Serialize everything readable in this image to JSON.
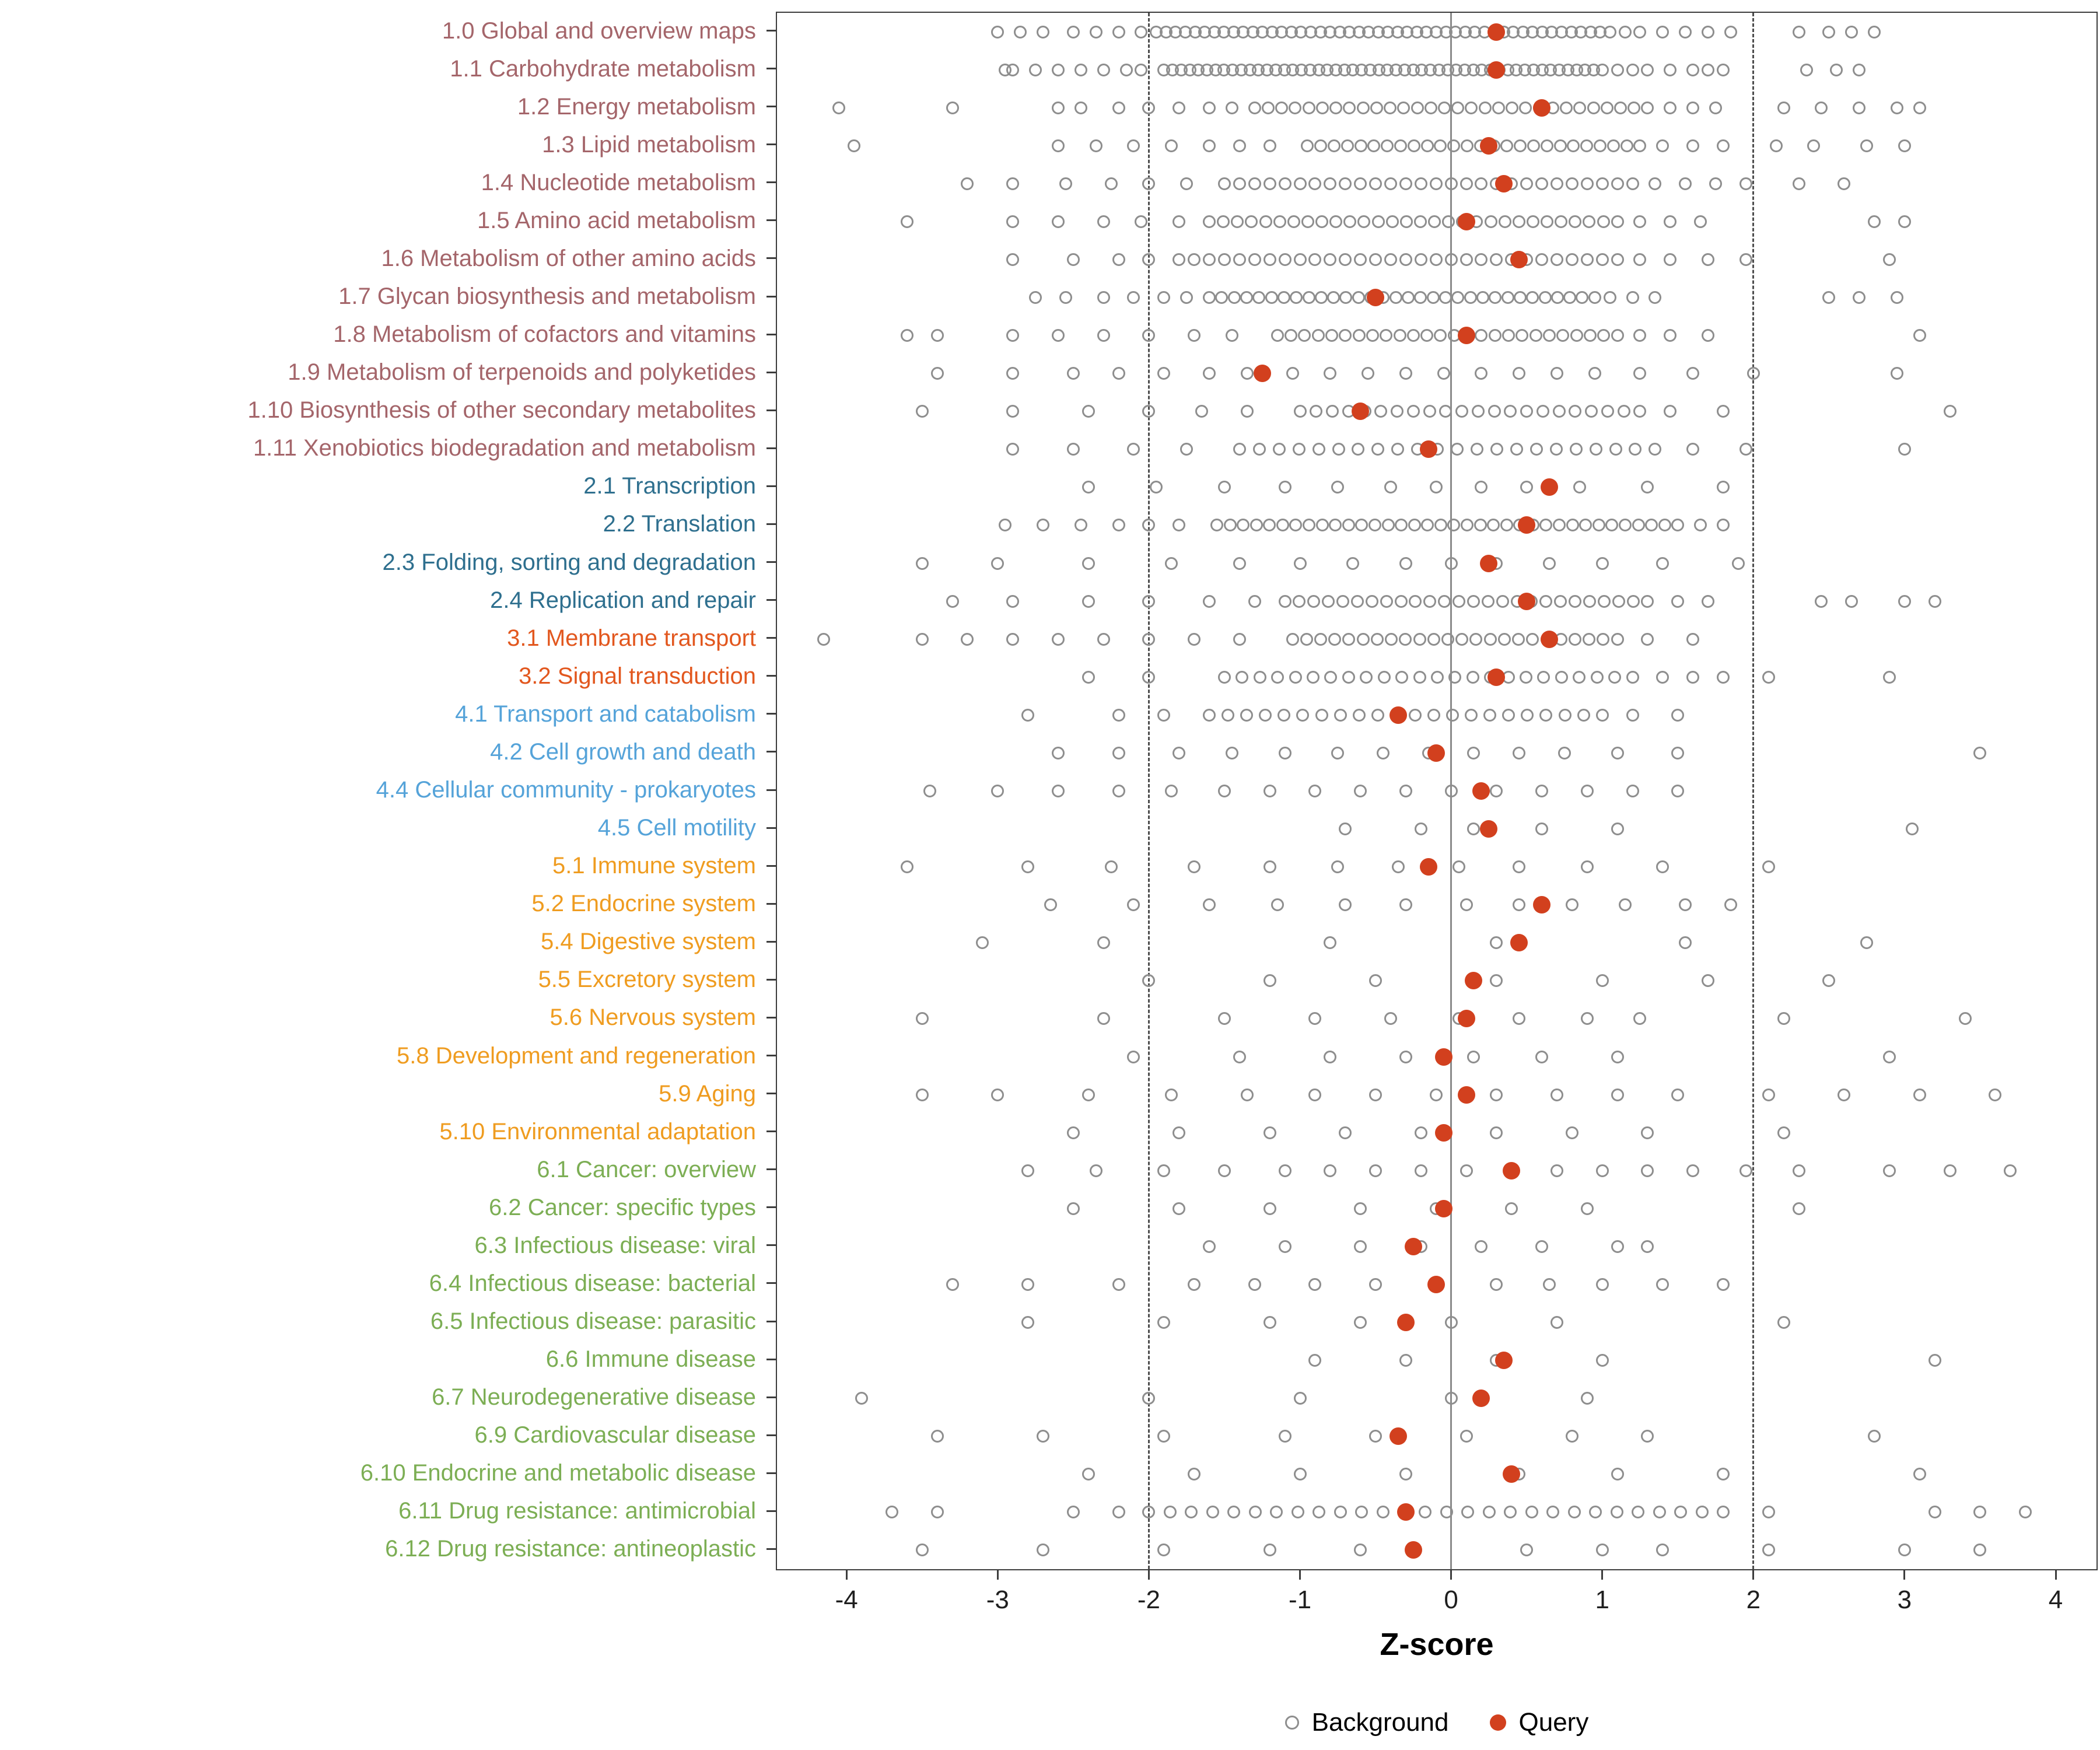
{
  "chart_data": {
    "type": "scatter",
    "title": "",
    "xlabel": "Z-score",
    "xticks": [
      -4,
      -3,
      -2,
      -1,
      0,
      1,
      2,
      3,
      4
    ],
    "xlim": [
      -4.46,
      4.27
    ],
    "grid": "off",
    "legend_position": "bottom",
    "reference_lines": {
      "solid": [
        0
      ],
      "dashed": [
        -2,
        2
      ]
    },
    "group_colors": {
      "metabolism": "#A4656A",
      "genetic": "#2E6F8E",
      "environmental": "#E2571E",
      "cellular": "#55A3D9",
      "organismal": "#EF9C20",
      "disease": "#7CAE54"
    },
    "rows": [
      {
        "label": "1.0 Global and overview maps",
        "group": "metabolism",
        "query": 0.3,
        "bg_segments": [
          [
            -1.95,
            1.05,
            48
          ]
        ],
        "bg_points": [
          -3.0,
          -2.85,
          -2.7,
          -2.5,
          -2.35,
          -2.2,
          -2.05,
          1.15,
          1.25,
          1.4,
          1.55,
          1.7,
          1.85,
          2.3,
          2.5,
          2.65,
          2.8
        ]
      },
      {
        "label": "1.1 Carbohydrate metabolism",
        "group": "metabolism",
        "query": 0.3,
        "bg_segments": [
          [
            -1.9,
            1.0,
            52
          ]
        ],
        "bg_points": [
          -2.95,
          -2.9,
          -2.75,
          -2.6,
          -2.45,
          -2.3,
          -2.15,
          -2.05,
          1.1,
          1.2,
          1.3,
          1.45,
          1.6,
          1.7,
          1.8,
          2.35,
          2.55,
          2.7
        ]
      },
      {
        "label": "1.2 Energy metabolism",
        "group": "metabolism",
        "query": 0.6,
        "bg_segments": [
          [
            -1.3,
            1.3,
            30
          ]
        ],
        "bg_points": [
          -4.05,
          -3.3,
          -2.6,
          -2.45,
          -2.2,
          -2.0,
          -1.8,
          -1.6,
          -1.45,
          1.45,
          1.6,
          1.75,
          2.2,
          2.45,
          2.7,
          2.95,
          3.1
        ]
      },
      {
        "label": "1.3 Lipid metabolism",
        "group": "metabolism",
        "query": 0.25,
        "bg_segments": [
          [
            -0.95,
            1.25,
            26
          ]
        ],
        "bg_points": [
          -3.95,
          -2.6,
          -2.35,
          -2.1,
          -1.85,
          -1.6,
          -1.4,
          -1.2,
          1.4,
          1.6,
          1.8,
          2.15,
          2.4,
          2.75,
          3.0
        ]
      },
      {
        "label": "1.4 Nucleotide metabolism",
        "group": "metabolism",
        "query": 0.35,
        "bg_segments": [
          [
            -1.5,
            1.2,
            28
          ]
        ],
        "bg_points": [
          -3.2,
          -2.9,
          -2.55,
          -2.25,
          -2.0,
          -1.75,
          1.35,
          1.55,
          1.75,
          1.95,
          2.3,
          2.6
        ]
      },
      {
        "label": "1.5 Amino acid metabolism",
        "group": "metabolism",
        "query": 0.1,
        "bg_segments": [
          [
            -1.6,
            1.1,
            30
          ]
        ],
        "bg_points": [
          -3.6,
          -2.9,
          -2.6,
          -2.3,
          -2.05,
          -1.8,
          1.25,
          1.45,
          1.65,
          2.8,
          3.0
        ]
      },
      {
        "label": "1.6 Metabolism of other amino acids",
        "group": "metabolism",
        "query": 0.45,
        "bg_segments": [
          [
            -1.8,
            1.1,
            30
          ]
        ],
        "bg_points": [
          -2.9,
          -2.5,
          -2.2,
          -2.0,
          1.25,
          1.45,
          1.7,
          1.95,
          2.9
        ]
      },
      {
        "label": "1.7 Glycan biosynthesis and metabolism",
        "group": "metabolism",
        "query": -0.5,
        "bg_segments": [
          [
            -1.6,
            0.95,
            32
          ]
        ],
        "bg_points": [
          -2.75,
          -2.55,
          -2.3,
          -2.1,
          -1.9,
          -1.75,
          1.05,
          1.2,
          1.35,
          2.5,
          2.7,
          2.95
        ]
      },
      {
        "label": "1.8 Metabolism of cofactors and vitamins",
        "group": "metabolism",
        "query": 0.1,
        "bg_segments": [
          [
            -1.15,
            1.1,
            26
          ]
        ],
        "bg_points": [
          -3.6,
          -3.4,
          -2.9,
          -2.6,
          -2.3,
          -2.0,
          -1.7,
          -1.45,
          1.25,
          1.45,
          1.7,
          3.1
        ]
      },
      {
        "label": "1.9 Metabolism of terpenoids and polyketides",
        "group": "metabolism",
        "query": -1.25,
        "bg_points": [
          -3.4,
          -2.9,
          -2.5,
          -2.2,
          -1.9,
          -1.6,
          -1.35,
          -1.05,
          -0.8,
          -0.55,
          -0.3,
          -0.05,
          0.2,
          0.45,
          0.7,
          0.95,
          1.25,
          1.6,
          2.0,
          2.95
        ]
      },
      {
        "label": "1.10 Biosynthesis of other secondary metabolites",
        "group": "metabolism",
        "query": -0.6,
        "bg_segments": [
          [
            -1.0,
            1.25,
            22
          ]
        ],
        "bg_points": [
          -3.5,
          -2.9,
          -2.4,
          -2.0,
          -1.65,
          -1.35,
          1.45,
          1.8,
          3.3
        ]
      },
      {
        "label": "1.11 Xenobiotics biodegradation and metabolism",
        "group": "metabolism",
        "query": -0.15,
        "bg_segments": [
          [
            -1.4,
            1.35,
            22
          ]
        ],
        "bg_points": [
          -2.9,
          -2.5,
          -2.1,
          -1.75,
          1.6,
          1.95,
          3.0
        ]
      },
      {
        "label": "2.1 Transcription",
        "group": "genetic",
        "query": 0.65,
        "bg_points": [
          -2.4,
          -1.95,
          -1.5,
          -1.1,
          -0.75,
          -0.4,
          -0.1,
          0.2,
          0.5,
          0.85,
          1.3,
          1.8
        ]
      },
      {
        "label": "2.2 Translation",
        "group": "genetic",
        "query": 0.5,
        "bg_segments": [
          [
            -1.55,
            1.5,
            36
          ]
        ],
        "bg_points": [
          -2.95,
          -2.7,
          -2.45,
          -2.2,
          -2.0,
          -1.8,
          1.65,
          1.8
        ]
      },
      {
        "label": "2.3 Folding, sorting and degradation",
        "group": "genetic",
        "query": 0.25,
        "bg_points": [
          -3.5,
          -3.0,
          -2.4,
          -1.85,
          -1.4,
          -1.0,
          -0.65,
          -0.3,
          0.0,
          0.3,
          0.65,
          1.0,
          1.4,
          1.9
        ]
      },
      {
        "label": "2.4 Replication and repair",
        "group": "genetic",
        "query": 0.5,
        "bg_segments": [
          [
            -1.1,
            1.3,
            26
          ]
        ],
        "bg_points": [
          -3.3,
          -2.9,
          -2.4,
          -2.0,
          -1.6,
          -1.3,
          1.5,
          1.7,
          2.45,
          2.65,
          3.0,
          3.2
        ]
      },
      {
        "label": "3.1 Membrane transport",
        "group": "environmental",
        "query": 0.65,
        "bg_segments": [
          [
            -1.05,
            1.1,
            24
          ]
        ],
        "bg_points": [
          -4.15,
          -3.5,
          -3.2,
          -2.9,
          -2.6,
          -2.3,
          -2.0,
          -1.7,
          -1.4,
          1.3,
          1.6
        ]
      },
      {
        "label": "3.2 Signal transduction",
        "group": "environmental",
        "query": 0.3,
        "bg_segments": [
          [
            -1.5,
            1.2,
            24
          ]
        ],
        "bg_points": [
          -2.4,
          -2.0,
          1.4,
          1.6,
          1.8,
          2.1,
          2.9
        ]
      },
      {
        "label": "4.1 Transport and catabolism",
        "group": "cellular",
        "query": -0.35,
        "bg_segments": [
          [
            -1.6,
            1.0,
            22
          ]
        ],
        "bg_points": [
          -2.8,
          -2.2,
          -1.9,
          1.2,
          1.5
        ]
      },
      {
        "label": "4.2 Cell growth and death",
        "group": "cellular",
        "query": -0.1,
        "bg_points": [
          -2.6,
          -2.2,
          -1.8,
          -1.45,
          -1.1,
          -0.75,
          -0.45,
          -0.15,
          0.15,
          0.45,
          0.75,
          1.1,
          1.5,
          3.5
        ]
      },
      {
        "label": "4.4 Cellular community - prokaryotes",
        "group": "cellular",
        "query": 0.2,
        "bg_points": [
          -3.45,
          -3.0,
          -2.6,
          -2.2,
          -1.85,
          -1.5,
          -1.2,
          -0.9,
          -0.6,
          -0.3,
          0.0,
          0.3,
          0.6,
          0.9,
          1.2,
          1.5
        ]
      },
      {
        "label": "4.5 Cell motility",
        "group": "cellular",
        "query": 0.25,
        "bg_points": [
          -0.7,
          -0.2,
          0.15,
          0.6,
          1.1,
          3.05
        ]
      },
      {
        "label": "5.1 Immune system",
        "group": "organismal",
        "query": -0.15,
        "bg_points": [
          -3.6,
          -2.8,
          -2.25,
          -1.7,
          -1.2,
          -0.75,
          -0.35,
          0.05,
          0.45,
          0.9,
          1.4,
          2.1
        ]
      },
      {
        "label": "5.2 Endocrine system",
        "group": "organismal",
        "query": 0.6,
        "bg_points": [
          -2.65,
          -2.1,
          -1.6,
          -1.15,
          -0.7,
          -0.3,
          0.1,
          0.45,
          0.8,
          1.15,
          1.55,
          1.85
        ]
      },
      {
        "label": "5.4 Digestive system",
        "group": "organismal",
        "query": 0.45,
        "bg_points": [
          -3.1,
          -2.3,
          -0.8,
          0.3,
          1.55,
          2.75
        ]
      },
      {
        "label": "5.5 Excretory system",
        "group": "organismal",
        "query": 0.15,
        "bg_points": [
          -2.0,
          -1.2,
          -0.5,
          0.3,
          1.0,
          1.7,
          2.5
        ]
      },
      {
        "label": "5.6 Nervous system",
        "group": "organismal",
        "query": 0.1,
        "bg_points": [
          -3.5,
          -2.3,
          -1.5,
          -0.9,
          -0.4,
          0.05,
          0.45,
          0.9,
          1.25,
          2.2,
          3.4
        ]
      },
      {
        "label": "5.8 Development and regeneration",
        "group": "organismal",
        "query": -0.05,
        "bg_points": [
          -2.1,
          -1.4,
          -0.8,
          -0.3,
          0.15,
          0.6,
          1.1,
          2.9
        ]
      },
      {
        "label": "5.9 Aging",
        "group": "organismal",
        "query": 0.1,
        "bg_points": [
          -3.5,
          -3.0,
          -2.4,
          -1.85,
          -1.35,
          -0.9,
          -0.5,
          -0.1,
          0.3,
          0.7,
          1.1,
          1.5,
          2.1,
          2.6,
          3.1,
          3.6
        ]
      },
      {
        "label": "5.10 Environmental adaptation",
        "group": "organismal",
        "query": -0.05,
        "bg_points": [
          -2.5,
          -1.8,
          -1.2,
          -0.7,
          -0.2,
          0.3,
          0.8,
          1.3,
          2.2
        ]
      },
      {
        "label": "6.1 Cancer: overview",
        "group": "disease",
        "query": 0.4,
        "bg_points": [
          -2.8,
          -2.35,
          -1.9,
          -1.5,
          -1.1,
          -0.8,
          -0.5,
          -0.2,
          0.1,
          0.4,
          0.7,
          1.0,
          1.3,
          1.6,
          1.95,
          2.3,
          2.9,
          3.3,
          3.7
        ]
      },
      {
        "label": "6.2 Cancer: specific types",
        "group": "disease",
        "query": -0.05,
        "bg_points": [
          -2.5,
          -1.8,
          -1.2,
          -0.6,
          -0.1,
          0.4,
          0.9,
          2.3
        ]
      },
      {
        "label": "6.3 Infectious disease: viral",
        "group": "disease",
        "query": -0.25,
        "bg_points": [
          -1.6,
          -1.1,
          -0.6,
          -0.2,
          0.2,
          0.6,
          1.1,
          1.3
        ]
      },
      {
        "label": "6.4 Infectious disease: bacterial",
        "group": "disease",
        "query": -0.1,
        "bg_points": [
          -3.3,
          -2.8,
          -2.2,
          -1.7,
          -1.3,
          -0.9,
          -0.5,
          -0.1,
          0.3,
          0.65,
          1.0,
          1.4,
          1.8
        ]
      },
      {
        "label": "6.5 Infectious disease: parasitic",
        "group": "disease",
        "query": -0.3,
        "bg_points": [
          -2.8,
          -1.9,
          -1.2,
          -0.6,
          0.0,
          0.7,
          2.2
        ]
      },
      {
        "label": "6.6 Immune disease",
        "group": "disease",
        "query": 0.35,
        "bg_points": [
          -0.9,
          -0.3,
          0.3,
          1.0,
          3.2
        ]
      },
      {
        "label": "6.7 Neurodegenerative disease",
        "group": "disease",
        "query": 0.2,
        "bg_points": [
          -3.9,
          -2.0,
          -1.0,
          0.0,
          0.9
        ]
      },
      {
        "label": "6.9 Cardiovascular disease",
        "group": "disease",
        "query": -0.35,
        "bg_points": [
          -3.4,
          -2.7,
          -1.9,
          -1.1,
          -0.5,
          0.1,
          0.8,
          1.3,
          2.8
        ]
      },
      {
        "label": "6.10 Endocrine and metabolic disease",
        "group": "disease",
        "query": 0.4,
        "bg_points": [
          -2.4,
          -1.7,
          -1.0,
          -0.3,
          0.45,
          1.1,
          1.8,
          3.1
        ]
      },
      {
        "label": "6.11 Drug resistance: antimicrobial",
        "group": "disease",
        "query": -0.3,
        "bg_segments": [
          [
            -2.0,
            1.8,
            28
          ]
        ],
        "bg_points": [
          -3.7,
          -3.4,
          -2.5,
          -2.2,
          2.1,
          3.2,
          3.5,
          3.8
        ]
      },
      {
        "label": "6.12 Drug resistance: antineoplastic",
        "group": "disease",
        "query": -0.25,
        "bg_points": [
          -3.5,
          -2.7,
          -1.9,
          -1.2,
          -0.6,
          0.5,
          1.0,
          1.4,
          2.1,
          3.0,
          3.5
        ]
      }
    ]
  },
  "legend": {
    "items": [
      {
        "label": "Background"
      },
      {
        "label": "Query"
      }
    ]
  },
  "colors": {
    "query": "#D2401E",
    "background_stroke": "#8E8E8E",
    "axis": "#3D3D3D",
    "ref_solid": "#8A8A8A",
    "ref_dashed": "#4D4D4D"
  }
}
